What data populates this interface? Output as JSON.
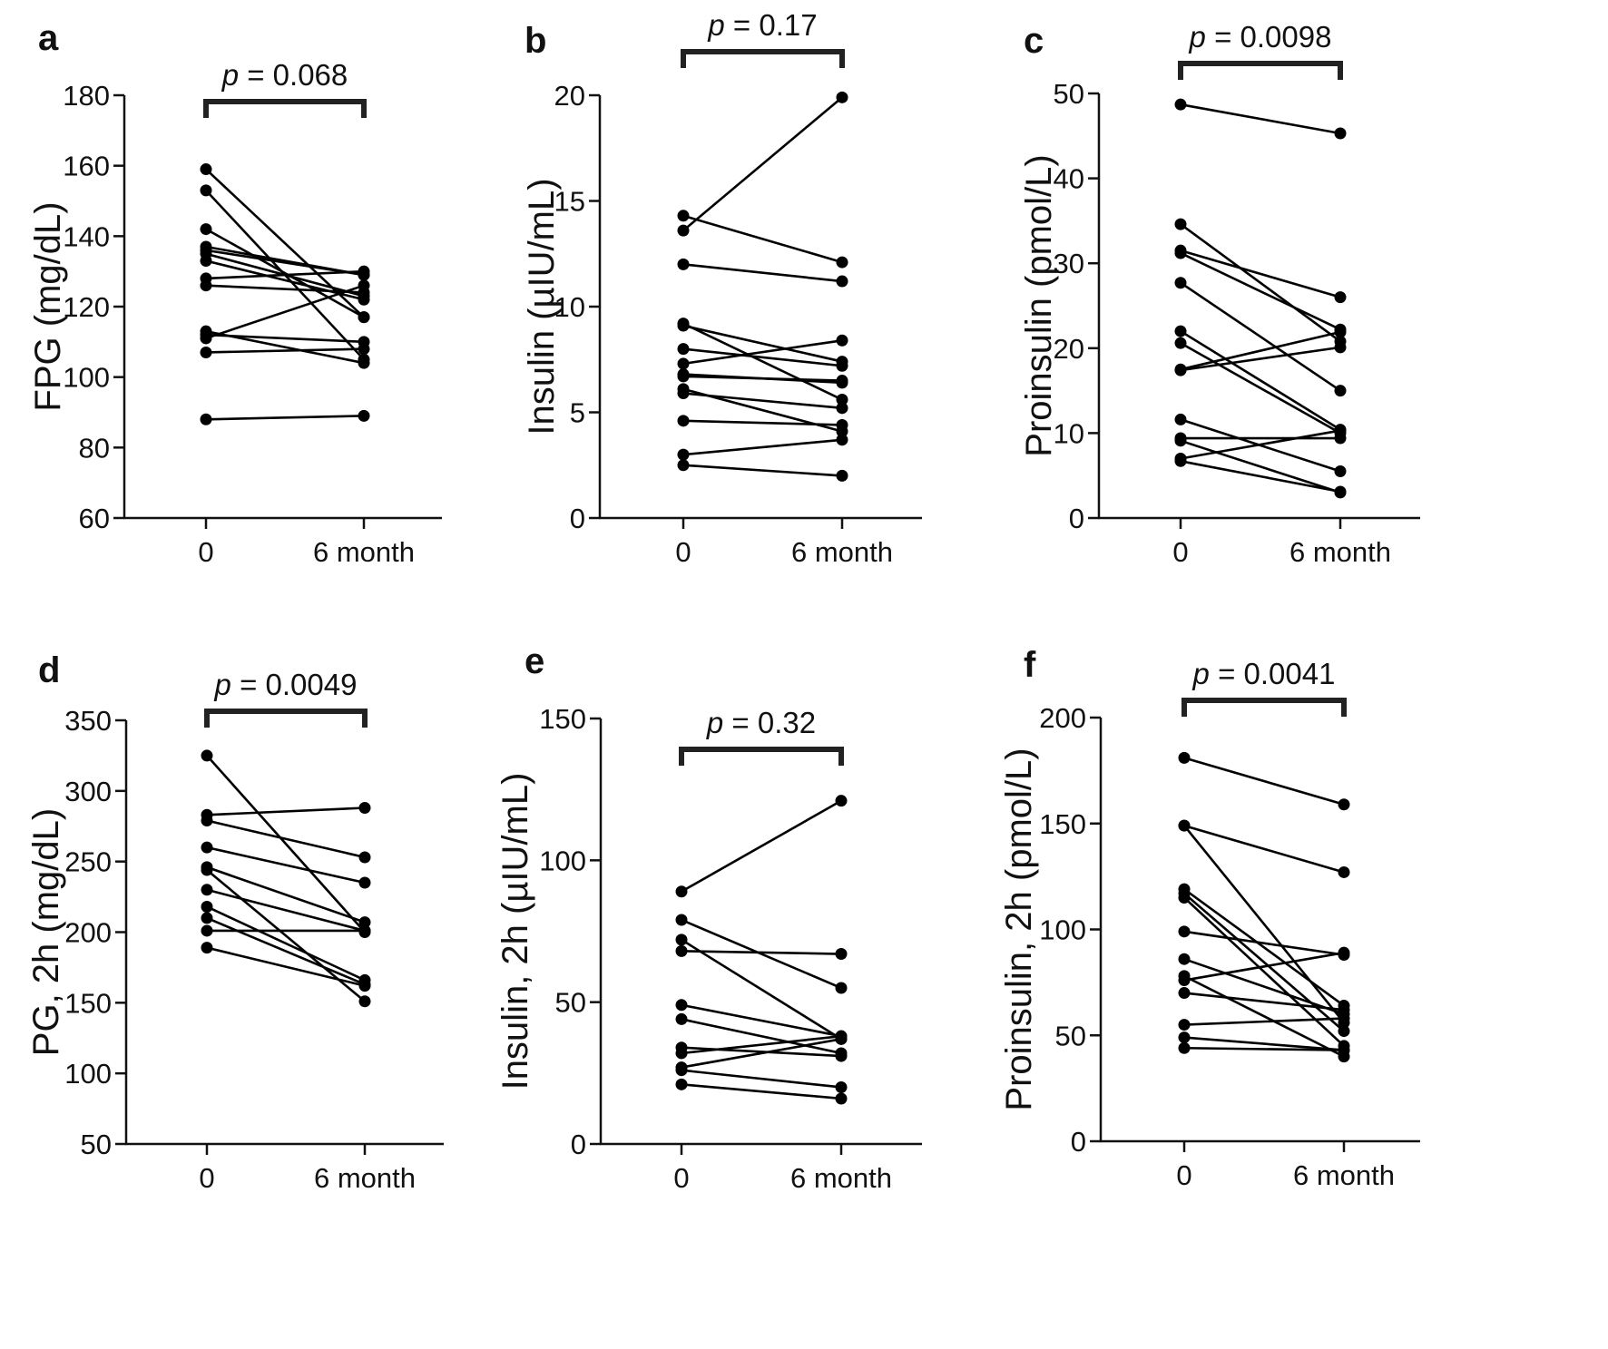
{
  "style": {
    "mark_color": "#000000",
    "bracket_color": "#222222",
    "axis_color": "#111111"
  },
  "chart_data": [
    {
      "panel": "a",
      "type": "line",
      "ylabel": "FPG (mg/dL)",
      "categories": [
        "0",
        "6 month"
      ],
      "ylim": [
        60,
        180
      ],
      "yticks": [
        60,
        80,
        100,
        120,
        140,
        160,
        180
      ],
      "p_label": "p",
      "p_text": "= 0.068",
      "pairs": [
        [
          159,
          117
        ],
        [
          153,
          105
        ],
        [
          142,
          117
        ],
        [
          137,
          129
        ],
        [
          136,
          129
        ],
        [
          135,
          123
        ],
        [
          133,
          122
        ],
        [
          128,
          130
        ],
        [
          126,
          124
        ],
        [
          113,
          104
        ],
        [
          112,
          110
        ],
        [
          111,
          126
        ],
        [
          107,
          108
        ],
        [
          88,
          89
        ]
      ]
    },
    {
      "panel": "b",
      "type": "line",
      "ylabel": "Insulin (µIU/mL)",
      "categories": [
        "0",
        "6 month"
      ],
      "ylim": [
        0,
        20
      ],
      "yticks": [
        0,
        5,
        10,
        15,
        20
      ],
      "p_label": "p",
      "p_text": "= 0.17",
      "pairs": [
        [
          13.6,
          19.9
        ],
        [
          14.3,
          12.1
        ],
        [
          12.0,
          11.2
        ],
        [
          9.2,
          5.6
        ],
        [
          9.1,
          7.4
        ],
        [
          8.0,
          7.2
        ],
        [
          7.3,
          8.4
        ],
        [
          6.8,
          6.4
        ],
        [
          6.7,
          6.5
        ],
        [
          6.1,
          4.1
        ],
        [
          5.9,
          5.2
        ],
        [
          4.6,
          4.4
        ],
        [
          3.0,
          3.7
        ],
        [
          2.5,
          2.0
        ]
      ]
    },
    {
      "panel": "c",
      "type": "line",
      "ylabel": "Proinsulin (pmol/L)",
      "categories": [
        "0",
        "6 month"
      ],
      "ylim": [
        0,
        50
      ],
      "yticks": [
        0,
        10,
        20,
        30,
        40,
        50
      ],
      "p_label": "p",
      "p_text": "= 0.0098",
      "pairs": [
        [
          48.7,
          45.3
        ],
        [
          34.6,
          20.8
        ],
        [
          31.5,
          26.0
        ],
        [
          31.2,
          22.2
        ],
        [
          27.7,
          15.0
        ],
        [
          22.0,
          10.4
        ],
        [
          20.6,
          10.0
        ],
        [
          17.5,
          21.9
        ],
        [
          17.4,
          20.1
        ],
        [
          11.6,
          5.5
        ],
        [
          9.4,
          9.4
        ],
        [
          9.1,
          3.0
        ],
        [
          7.0,
          10.3
        ],
        [
          6.7,
          3.1
        ]
      ]
    },
    {
      "panel": "d",
      "type": "line",
      "ylabel": "PG, 2h (mg/dL)",
      "categories": [
        "0",
        "6 month"
      ],
      "ylim": [
        50,
        350
      ],
      "yticks": [
        50,
        100,
        150,
        200,
        250,
        300,
        350
      ],
      "p_label": "p",
      "p_text": "= 0.0049",
      "pairs": [
        [
          325,
          200
        ],
        [
          283,
          288
        ],
        [
          279,
          253
        ],
        [
          260,
          235
        ],
        [
          246,
          207
        ],
        [
          244,
          151
        ],
        [
          230,
          201
        ],
        [
          218,
          166
        ],
        [
          210,
          163
        ],
        [
          201,
          201
        ],
        [
          189,
          162
        ]
      ]
    },
    {
      "panel": "e",
      "type": "line",
      "ylabel": "Insulin, 2h (µIU/mL)",
      "categories": [
        "0",
        "6 month"
      ],
      "ylim": [
        0,
        150
      ],
      "yticks": [
        0,
        50,
        100,
        150
      ],
      "p_label": "p",
      "p_text": "= 0.32",
      "pairs": [
        [
          89,
          121
        ],
        [
          79,
          55
        ],
        [
          72,
          37
        ],
        [
          68,
          67
        ],
        [
          49,
          38
        ],
        [
          44,
          32
        ],
        [
          34,
          31
        ],
        [
          32,
          38
        ],
        [
          27,
          37
        ],
        [
          26,
          20
        ],
        [
          21,
          16
        ]
      ]
    },
    {
      "panel": "f",
      "type": "line",
      "ylabel": "Proinsulin, 2h (pmol/L)",
      "categories": [
        "0",
        "6 month"
      ],
      "ylim": [
        0,
        200
      ],
      "yticks": [
        0,
        50,
        100,
        150,
        200
      ],
      "p_label": "p",
      "p_text": "= 0.0041",
      "pairs": [
        [
          181,
          159
        ],
        [
          149,
          127
        ],
        [
          149,
          56
        ],
        [
          119,
          64
        ],
        [
          117,
          52
        ],
        [
          115,
          45
        ],
        [
          99,
          88
        ],
        [
          86,
          60
        ],
        [
          78,
          40
        ],
        [
          76,
          89
        ],
        [
          70,
          62
        ],
        [
          55,
          58
        ],
        [
          49,
          43
        ],
        [
          44,
          43
        ]
      ]
    }
  ]
}
